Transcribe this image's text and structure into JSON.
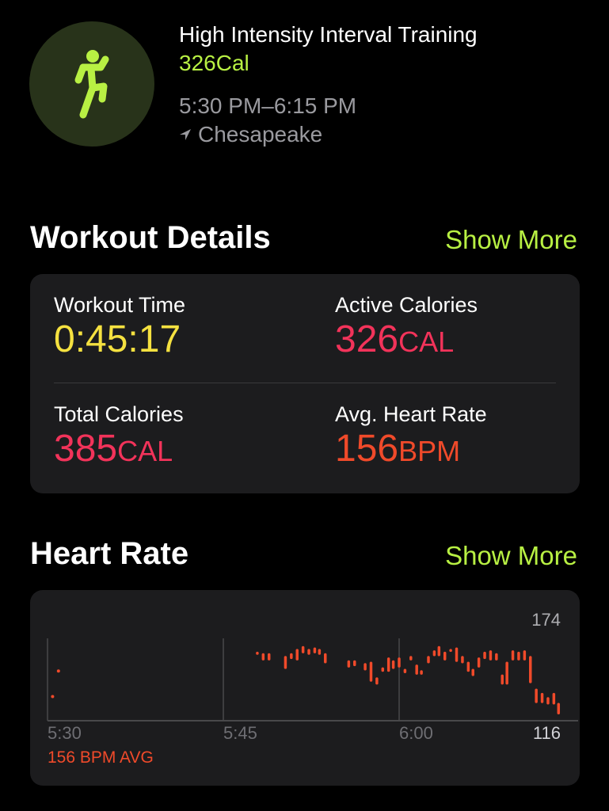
{
  "colors": {
    "accent": "#b8f043",
    "yellow": "#f5e140",
    "pink": "#f2335a",
    "heart": "#f04a2a"
  },
  "workout": {
    "icon": "running-figure-icon",
    "title": "High Intensity Interval Training",
    "calories": "326Cal",
    "time_range": "5:30 PM–6:15 PM",
    "location": "Chesapeake",
    "location_icon": "location-arrow-icon"
  },
  "details": {
    "title": "Workout Details",
    "show_more": "Show More",
    "items": [
      {
        "label": "Workout Time",
        "value": "0:45:17",
        "unit": ""
      },
      {
        "label": "Active Calories",
        "value": "326",
        "unit": "CAL"
      },
      {
        "label": "Total Calories",
        "value": "385",
        "unit": "CAL"
      },
      {
        "label": "Avg. Heart Rate",
        "value": "156",
        "unit": "BPM"
      }
    ]
  },
  "heart_rate": {
    "title": "Heart Rate",
    "show_more": "Show More",
    "avg_label": "156 BPM AVG"
  },
  "chart_data": {
    "type": "range-bar",
    "x_ticks": [
      "5:30",
      "5:45",
      "6:00"
    ],
    "xlim": [
      "5:30",
      "6:15"
    ],
    "ylim": [
      116,
      174
    ],
    "y_labels": [
      "174",
      "116"
    ],
    "grid": "vertical",
    "points": [
      [
        "5:30:26",
        133,
        133
      ],
      [
        "5:30:56",
        151,
        151
      ],
      [
        "5:47:54",
        163,
        164
      ],
      [
        "5:48:24",
        159,
        163
      ],
      [
        "5:48:54",
        159,
        163
      ],
      [
        "5:50:18",
        153,
        161
      ],
      [
        "5:50:48",
        160,
        163
      ],
      [
        "5:51:18",
        159,
        166
      ],
      [
        "5:51:48",
        164,
        168
      ],
      [
        "5:52:18",
        163,
        166
      ],
      [
        "5:52:48",
        164,
        167
      ],
      [
        "5:53:12",
        163,
        166
      ],
      [
        "5:53:42",
        157,
        163
      ],
      [
        "5:55:42",
        154,
        158
      ],
      [
        "5:56:12",
        155,
        158
      ],
      [
        "5:57:06",
        152,
        156
      ],
      [
        "5:57:36",
        144,
        157
      ],
      [
        "5:58:06",
        142,
        146
      ],
      [
        "5:58:36",
        151,
        153
      ],
      [
        "5:59:06",
        151,
        160
      ],
      [
        "5:59:30",
        153,
        158
      ],
      [
        "6:00:00",
        154,
        160
      ],
      [
        "6:00:30",
        150,
        152
      ],
      [
        "6:01:00",
        159,
        161
      ],
      [
        "6:01:30",
        149,
        155
      ],
      [
        "6:01:54",
        149,
        151
      ],
      [
        "6:02:30",
        157,
        161
      ],
      [
        "6:03:00",
        162,
        165
      ],
      [
        "6:03:24",
        162,
        168
      ],
      [
        "6:03:54",
        159,
        164
      ],
      [
        "6:04:24",
        165,
        166
      ],
      [
        "6:04:54",
        158,
        167
      ],
      [
        "6:05:24",
        157,
        161
      ],
      [
        "6:05:54",
        151,
        157
      ],
      [
        "6:06:18",
        148,
        152
      ],
      [
        "6:06:48",
        154,
        160
      ],
      [
        "6:07:18",
        160,
        164
      ],
      [
        "6:07:48",
        159,
        165
      ],
      [
        "6:08:18",
        159,
        163
      ],
      [
        "6:08:48",
        142,
        148
      ],
      [
        "6:09:12",
        142,
        157
      ],
      [
        "6:09:42",
        159,
        165
      ],
      [
        "6:10:12",
        159,
        164
      ],
      [
        "6:10:42",
        159,
        165
      ],
      [
        "6:11:12",
        143,
        161
      ],
      [
        "6:11:42",
        129,
        138
      ],
      [
        "6:12:12",
        129,
        135
      ],
      [
        "6:12:42",
        128,
        132
      ],
      [
        "6:13:12",
        128,
        135
      ],
      [
        "6:13:36",
        121,
        128
      ]
    ]
  }
}
